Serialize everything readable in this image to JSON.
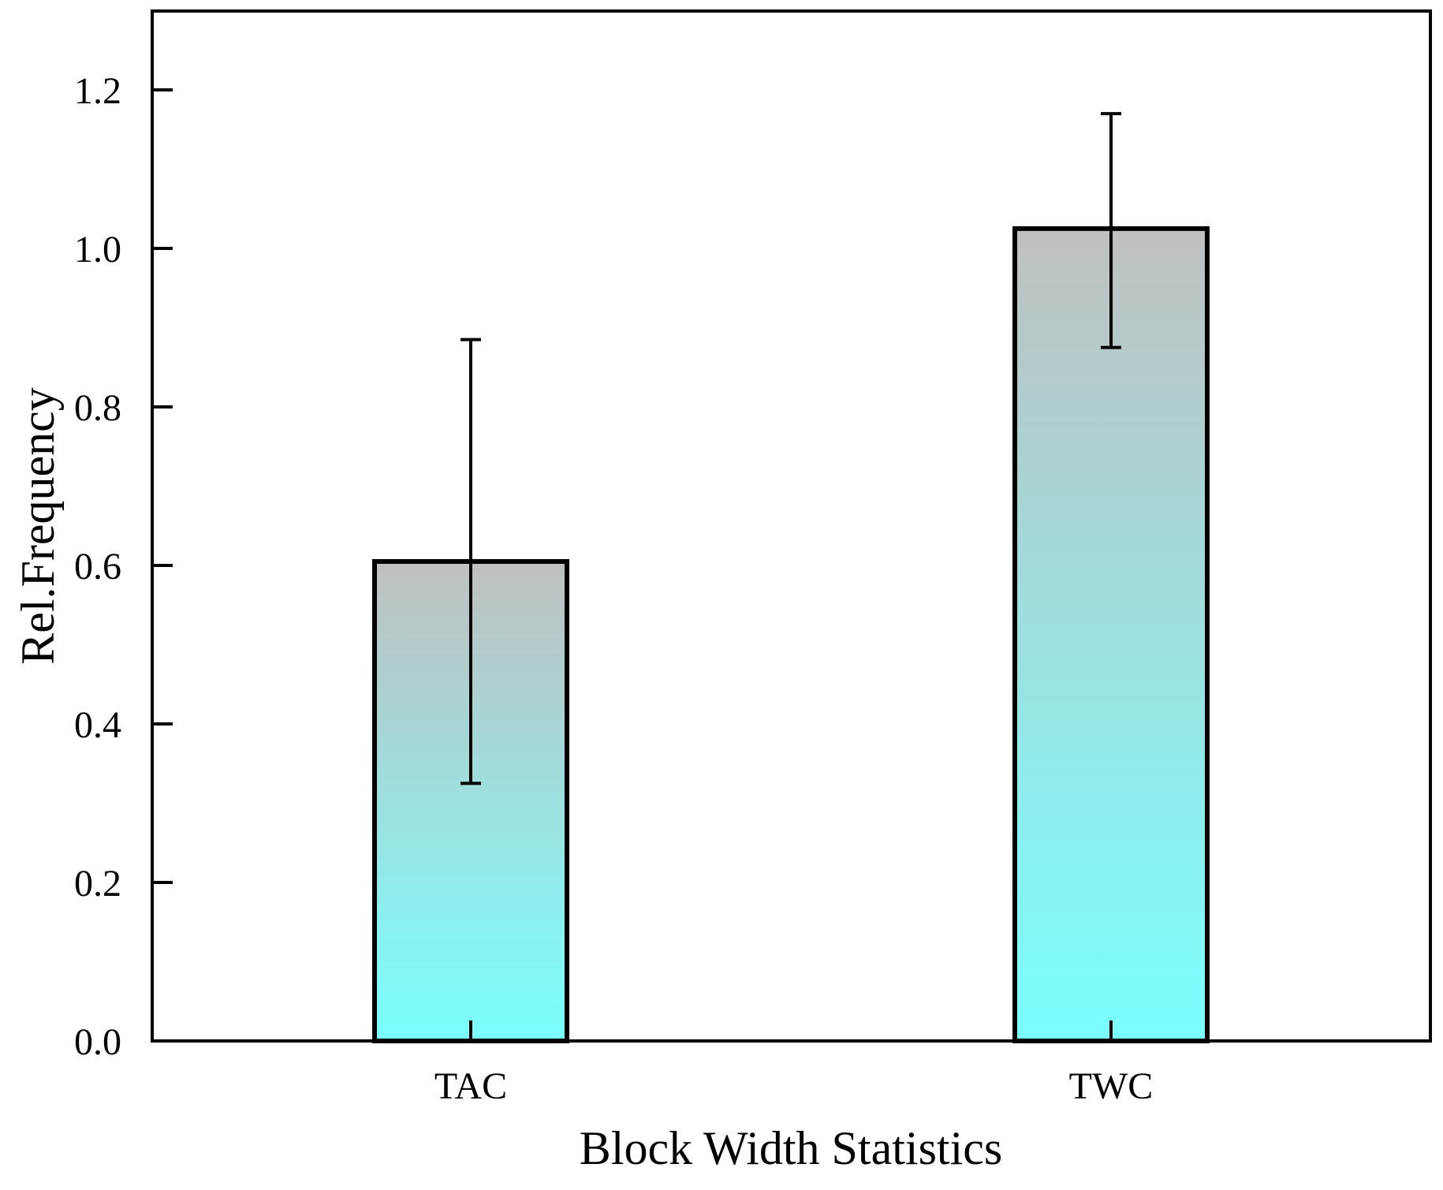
{
  "chart_data": {
    "type": "bar",
    "title": "",
    "xlabel": "Block Width Statistics",
    "ylabel": "Rel.Frequency",
    "categories": [
      "TAC",
      "TWC"
    ],
    "values": [
      0.605,
      1.025
    ],
    "error_low": [
      0.325,
      0.875
    ],
    "error_high": [
      0.885,
      1.17
    ],
    "ylim": [
      0,
      1.3
    ],
    "yticks": [
      0.0,
      0.2,
      0.4,
      0.6,
      0.8,
      1.0,
      1.2
    ],
    "ytick_labels": [
      "0.0",
      "0.2",
      "0.4",
      "0.6",
      "0.8",
      "1.0",
      "1.2"
    ],
    "grid": false,
    "legend": "none",
    "colors": {
      "bar_top": "#c0c0c0",
      "bar_bottom": "#7affff",
      "outline": "#000000"
    }
  }
}
